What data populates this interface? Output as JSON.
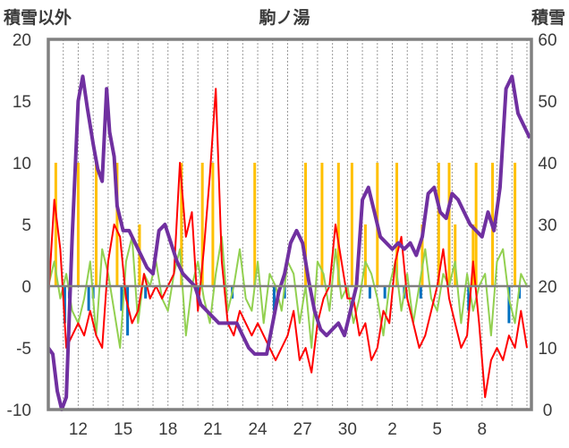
{
  "chart_data": {
    "type": "line",
    "title": "駒ノ湯",
    "left_axis_label": "積雪以外",
    "right_axis_label": "積雪",
    "left_ylim": [
      -10,
      20
    ],
    "right_ylim": [
      0,
      60
    ],
    "left_ticks": [
      "20",
      "15",
      "10",
      "5",
      "0",
      "-5",
      "-10"
    ],
    "right_ticks": [
      "60",
      "50",
      "40",
      "30",
      "20",
      "10",
      "0"
    ],
    "x_tick_labels": [
      "12",
      "15",
      "18",
      "21",
      "24",
      "27",
      "30",
      "2",
      "5",
      "8"
    ],
    "grid": "vertical dotted daily lines",
    "colors": {
      "snow_depth": "#7030a0",
      "temperature": "#ff0000",
      "temp_change": "#92d050",
      "snowfall": "#ffc000",
      "negative_bars": "#0070c0",
      "border": "#808080"
    },
    "series": [
      {
        "axis": "right",
        "color": "#7030a0",
        "x": [
          10.0,
          10.3,
          10.6,
          10.9,
          11.2,
          11.6,
          12.0,
          12.3,
          12.6,
          13.0,
          13.3,
          13.6,
          13.9,
          14.1,
          14.4,
          14.6,
          15.0,
          15.4,
          15.8,
          16.2,
          16.6,
          17.0,
          17.4,
          17.8,
          18.2,
          18.6,
          19.0,
          19.4,
          19.8,
          20.2,
          20.6,
          21.0,
          21.4,
          21.8,
          22.2,
          22.6,
          23.0,
          23.4,
          23.8,
          24.2,
          24.6,
          25.0,
          25.4,
          25.8,
          26.2,
          26.6,
          27.0,
          27.4,
          27.8,
          28.2,
          28.6,
          29.0,
          29.4,
          29.8,
          30.2,
          30.6,
          31.0,
          31.4,
          31.8,
          32.2,
          32.6,
          33.0,
          33.4,
          33.8,
          34.2,
          34.6,
          35.0,
          35.4,
          35.8,
          36.2,
          36.6,
          37.0,
          37.4,
          37.8,
          38.2,
          38.6,
          39.0,
          39.4,
          39.8,
          40.2,
          40.6,
          41.0,
          41.4,
          41.8,
          42.2
        ],
        "values": [
          10,
          9,
          3,
          0,
          2,
          28,
          50,
          54,
          49,
          43,
          39,
          37,
          52,
          45,
          41,
          33,
          29,
          29,
          27,
          25,
          23,
          22,
          29,
          30,
          27,
          24,
          22,
          21,
          20,
          17,
          16,
          15,
          14,
          14,
          14,
          14,
          12,
          10,
          9,
          9,
          9,
          14,
          19,
          22,
          27,
          29,
          27,
          21,
          16,
          13,
          12,
          13,
          14,
          12,
          16,
          20,
          34,
          36,
          32,
          28,
          27,
          26,
          27,
          26,
          27,
          25,
          28,
          35,
          36,
          32,
          31,
          35,
          34,
          32,
          30,
          29,
          28,
          32,
          29,
          36,
          52,
          54,
          48,
          46,
          44
        ]
      },
      {
        "axis": "left",
        "color": "#ff0000",
        "x": [
          10.0,
          10.4,
          10.8,
          11.2,
          11.6,
          12.0,
          12.4,
          12.8,
          13.2,
          13.6,
          14.0,
          14.4,
          14.8,
          15.2,
          15.6,
          16.0,
          16.4,
          16.8,
          17.2,
          17.6,
          18.0,
          18.4,
          18.8,
          19.2,
          19.6,
          20.0,
          20.4,
          20.8,
          21.2,
          21.6,
          22.0,
          22.4,
          22.8,
          23.2,
          23.6,
          24.0,
          24.4,
          24.8,
          25.2,
          25.6,
          26.0,
          26.4,
          26.8,
          27.2,
          27.6,
          28.0,
          28.4,
          28.8,
          29.2,
          29.6,
          30.0,
          30.4,
          30.8,
          31.2,
          31.6,
          32.0,
          32.4,
          32.8,
          33.2,
          33.6,
          34.0,
          34.4,
          34.8,
          35.2,
          35.6,
          36.0,
          36.4,
          36.8,
          37.2,
          37.6,
          38.0,
          38.4,
          38.8,
          39.2,
          39.6,
          40.0,
          40.4,
          40.8,
          41.2,
          41.6,
          42.0
        ],
        "values": [
          -1,
          7,
          3,
          -5,
          -4,
          -3,
          -4,
          -2,
          -4,
          -5,
          2,
          5,
          4,
          -1,
          -3,
          -2,
          1,
          -1,
          0,
          -1,
          0,
          1,
          10,
          4,
          6,
          -2,
          3,
          9,
          16,
          2,
          -3,
          -4,
          -2,
          -3,
          -4,
          -3,
          -4,
          -5,
          -6,
          -5,
          -4,
          -2,
          -6,
          -5,
          -7,
          -3,
          -1,
          0,
          5,
          2,
          -1,
          -1,
          -4,
          -3,
          -6,
          -5,
          -2,
          -3,
          2,
          4,
          -1,
          -3,
          -5,
          -4,
          -2,
          0,
          3,
          -1,
          -3,
          -5,
          -4,
          2,
          -3,
          -9,
          -6,
          -5,
          -6,
          -4,
          -5,
          -2,
          -5
        ]
      },
      {
        "axis": "left",
        "color": "#92d050",
        "x": [
          10.0,
          10.4,
          10.8,
          11.2,
          11.6,
          12.0,
          12.4,
          12.8,
          13.2,
          13.6,
          14.0,
          14.4,
          14.8,
          15.2,
          15.6,
          16.0,
          16.4,
          16.8,
          17.2,
          17.6,
          18.0,
          18.4,
          18.8,
          19.2,
          19.6,
          20.0,
          20.4,
          20.8,
          21.2,
          21.6,
          22.0,
          22.4,
          22.8,
          23.2,
          23.6,
          24.0,
          24.4,
          24.8,
          25.2,
          25.6,
          26.0,
          26.4,
          26.8,
          27.2,
          27.6,
          28.0,
          28.4,
          28.8,
          29.2,
          29.6,
          30.0,
          30.4,
          30.8,
          31.2,
          31.6,
          32.0,
          32.4,
          32.8,
          33.2,
          33.6,
          34.0,
          34.4,
          34.8,
          35.2,
          35.6,
          36.0,
          36.4,
          36.8,
          37.2,
          37.6,
          38.0,
          38.4,
          38.8,
          39.2,
          39.6,
          40.0,
          40.4,
          40.8,
          41.2,
          41.6,
          42.0
        ],
        "values": [
          0,
          2,
          -1,
          1,
          -2,
          -3,
          -1,
          2,
          -4,
          3,
          1,
          -2,
          -5,
          2,
          4,
          -3,
          1,
          0,
          2,
          -1,
          -2,
          1,
          3,
          -4,
          0,
          2,
          -1,
          -3,
          1,
          4,
          -2,
          0,
          3,
          -1,
          -2,
          2,
          -3,
          1,
          0,
          -2,
          2,
          1,
          -3,
          0,
          -5,
          2,
          1,
          -2,
          3,
          -1,
          0,
          -3,
          -1,
          2,
          1,
          -1,
          -4,
          0,
          2,
          -2,
          1,
          -3,
          0,
          3,
          -1,
          -2,
          1,
          0,
          2,
          -3,
          1,
          -2,
          0,
          1,
          -4,
          2,
          3,
          -1,
          -3,
          1,
          0
        ]
      }
    ],
    "bars": {
      "axis": "left",
      "positive_color": "#ffc000",
      "negative_color": "#0070c0",
      "x": [
        10.5,
        12.0,
        13.2,
        14.6,
        16.1,
        18.9,
        20.3,
        21.0,
        23.8,
        27.2,
        28.3,
        29.4,
        30.3,
        31.2,
        32.0,
        33.3,
        35.0,
        36.1,
        36.8,
        37.2,
        38.4,
        38.6,
        39.7,
        41.2
      ],
      "values": [
        10,
        10,
        10,
        10,
        5,
        10,
        10,
        10,
        10,
        10,
        10,
        10,
        10,
        5,
        10,
        10,
        5,
        10,
        10,
        5,
        5,
        10,
        10,
        10
      ]
    },
    "negative_bars": {
      "x": [
        11.1,
        11.4,
        12.7,
        13.0,
        14.9,
        15.3,
        16.5,
        20.0,
        22.3,
        25.1,
        25.8,
        31.5,
        32.5,
        33.8,
        34.9,
        38.1,
        40.8,
        41.5
      ],
      "values": [
        -3,
        -1,
        -2,
        -1,
        -2,
        -4,
        -1,
        -1,
        -1,
        -2,
        -1,
        -1,
        -1,
        -1,
        -1,
        -2,
        -3,
        -1
      ]
    }
  }
}
